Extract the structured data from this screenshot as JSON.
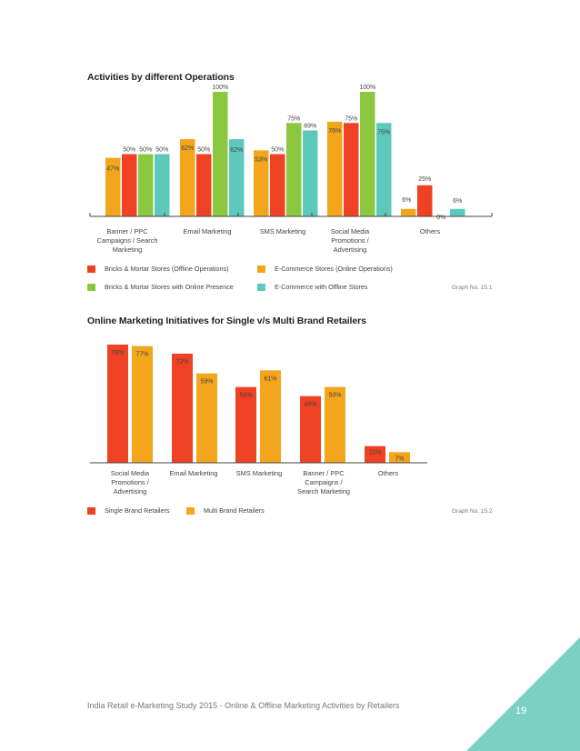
{
  "colors": {
    "red": "#ef4123",
    "orange": "#f3a51b",
    "green": "#8cc83f",
    "teal": "#5dc9bd",
    "accent": "#7ccfc3"
  },
  "chart_data": [
    {
      "type": "bar",
      "title": "Activities by different Operations",
      "categories": [
        "Banner / PPC Campaigns / Search Marketing",
        "Email Marketing",
        "SMS Marketing",
        "Social Media Promotions / Advertising",
        "Others"
      ],
      "series": [
        {
          "name": "E-Commerce Stores (Online Operations)",
          "color": "#f3a51b",
          "values": [
            47,
            62,
            53,
            76,
            6
          ],
          "labels": [
            "47%",
            "62%",
            "53%",
            "76%",
            "6%"
          ]
        },
        {
          "name": "Bricks & Mortar Stores (Offline Operations)",
          "color": "#ef4123",
          "values": [
            50,
            50,
            50,
            75,
            25
          ],
          "labels": [
            "50%",
            "50%",
            "50%",
            "75%",
            "25%"
          ]
        },
        {
          "name": "Bricks & Mortar Stores with Online Presence",
          "color": "#8cc83f",
          "values": [
            50,
            100,
            75,
            100,
            0
          ],
          "labels": [
            "50%",
            "100%",
            "75%",
            "100%",
            "0%"
          ]
        },
        {
          "name": "E-Commerce with Offline Stores",
          "color": "#5dc9bd",
          "values": [
            50,
            62,
            69,
            75,
            6
          ],
          "labels": [
            "50%",
            "62%",
            "69%",
            "75%",
            "6%"
          ]
        }
      ],
      "legend_order": [
        1,
        0,
        2,
        3
      ],
      "ylim": [
        0,
        100
      ],
      "xlabel": "",
      "ylabel": "",
      "grid": false,
      "graph_label": "Graph No. 15.1"
    },
    {
      "type": "bar",
      "title": "Online Marketing Initiatives for Single v/s Multi Brand Retailers",
      "categories": [
        "Social Media Promotions / Advertising",
        "Email Marketing",
        "SMS Marketing",
        "Banner / PPC Campaigns / Search Marketing",
        "Others"
      ],
      "series": [
        {
          "name": "Single Brand Retailers",
          "color": "#ef4123",
          "values": [
            78,
            72,
            50,
            44,
            11
          ],
          "labels": [
            "78%",
            "72%",
            "50%",
            "44%",
            "11%"
          ]
        },
        {
          "name": "Multi Brand Retailers",
          "color": "#f3a51b",
          "values": [
            77,
            59,
            61,
            50,
            7
          ],
          "labels": [
            "77%",
            "59%",
            "61%",
            "50%",
            "7%"
          ]
        }
      ],
      "legend_order": [
        0,
        1
      ],
      "ylim": [
        0,
        78
      ],
      "xlabel": "",
      "ylabel": "",
      "grid": false,
      "graph_label": "Graph No. 15.2"
    }
  ],
  "category_display": [
    [
      "Banner / PPC",
      "Campaigns / Search",
      "Marketing"
    ],
    [
      "Email Marketing"
    ],
    [
      "SMS Marketing"
    ],
    [
      "Social Media",
      "Promotions /",
      "Advertising"
    ],
    [
      "Others"
    ]
  ],
  "category_display_2": [
    [
      "Social Media",
      "Promotions /",
      "Advertising"
    ],
    [
      "Email Marketing"
    ],
    [
      "SMS Marketing"
    ],
    [
      "Banner / PPC",
      "Campaigns /",
      "Search Marketing"
    ],
    [
      "Others"
    ]
  ],
  "footer": {
    "text": "India Retail e-Marketing Study 2015 - Online & Offline Marketing Activities by Retailers",
    "page_number": "19"
  }
}
